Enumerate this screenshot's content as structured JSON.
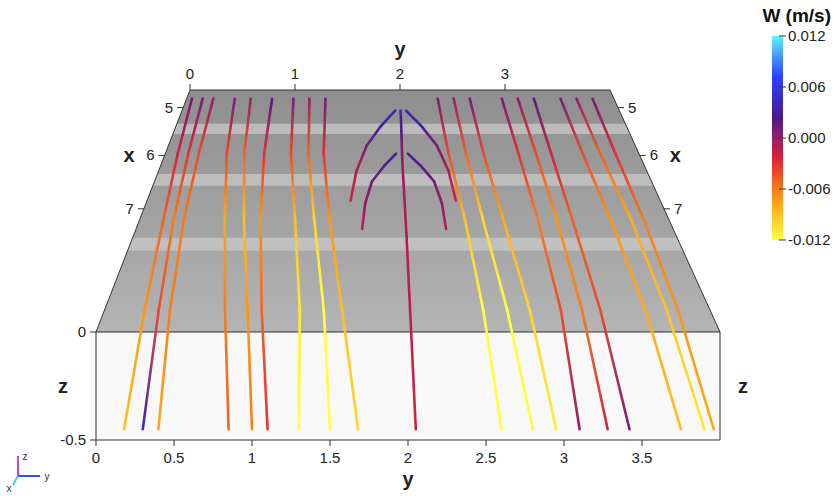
{
  "chart_data": {
    "type": "streamlines3d",
    "x_label": "x",
    "y_label": "y",
    "z_label": "z",
    "xlim": [
      4.6,
      9.0
    ],
    "xticks": [
      5,
      6,
      7
    ],
    "ylim": [
      0,
      4
    ],
    "yticks": [
      0,
      0.5,
      1,
      1.5,
      2,
      2.5,
      3,
      3.5
    ],
    "y_back_ticks": [
      0,
      1,
      2,
      3
    ],
    "zlim": [
      -0.5,
      0
    ],
    "zticks": [
      0,
      -0.5
    ],
    "colorbar": {
      "title": "W (m/s)",
      "range": [
        -0.012,
        0.012
      ],
      "ticks": [
        0.012,
        0.006,
        {
          "value": 0,
          "label": "0.000"
        },
        -0.006,
        -0.012
      ],
      "colors": [
        "#ffff40",
        "#ff9a10",
        "#e0203a",
        "#4a1a8c",
        "#2a40ff",
        "#60f0ff"
      ]
    },
    "axes_triad": {
      "labels": [
        "z",
        "y",
        "x"
      ]
    },
    "streamlines": [
      {
        "points": [
          [
            4.8,
            0.05,
            0
          ],
          [
            5.8,
            0.08,
            -0.05
          ],
          [
            6.8,
            0.12,
            -0.12
          ],
          [
            7.9,
            0.15,
            -0.25
          ],
          [
            9.0,
            0.18,
            -0.45
          ]
        ],
        "w": [
          0.001,
          -0.002,
          -0.005,
          -0.007,
          -0.009
        ]
      },
      {
        "points": [
          [
            4.8,
            0.15,
            0
          ],
          [
            5.8,
            0.17,
            -0.05
          ],
          [
            6.8,
            0.2,
            -0.12
          ],
          [
            7.9,
            0.25,
            -0.25
          ],
          [
            9.0,
            0.3,
            -0.45
          ]
        ],
        "w": [
          0.001,
          -0.003,
          -0.006,
          -0.004,
          0.004
        ]
      },
      {
        "points": [
          [
            4.8,
            0.25,
            0
          ],
          [
            5.8,
            0.26,
            -0.05
          ],
          [
            6.8,
            0.28,
            -0.12
          ],
          [
            7.9,
            0.33,
            -0.25
          ],
          [
            9.0,
            0.4,
            -0.45
          ]
        ],
        "w": [
          0,
          -0.004,
          -0.006,
          -0.006,
          -0.008
        ]
      },
      {
        "points": [
          [
            4.8,
            0.45,
            0
          ],
          [
            5.8,
            0.5,
            -0.05
          ],
          [
            6.8,
            0.6,
            -0.12
          ],
          [
            7.9,
            0.72,
            -0.25
          ],
          [
            9.0,
            0.85,
            -0.45
          ]
        ],
        "w": [
          0.001,
          -0.004,
          -0.008,
          -0.006,
          -0.005
        ]
      },
      {
        "points": [
          [
            4.8,
            0.6,
            0
          ],
          [
            5.8,
            0.65,
            -0.05
          ],
          [
            6.8,
            0.75,
            -0.12
          ],
          [
            7.9,
            0.88,
            -0.25
          ],
          [
            9.0,
            1.0,
            -0.45
          ]
        ],
        "w": [
          0,
          -0.005,
          -0.009,
          -0.007,
          -0.006
        ]
      },
      {
        "points": [
          [
            4.8,
            0.8,
            0
          ],
          [
            5.8,
            0.82,
            -0.05
          ],
          [
            6.8,
            0.88,
            -0.12
          ],
          [
            7.9,
            0.98,
            -0.25
          ],
          [
            9.0,
            1.1,
            -0.45
          ]
        ],
        "w": [
          0.002,
          -0.003,
          -0.007,
          -0.005,
          -0.003
        ]
      },
      {
        "points": [
          [
            4.8,
            1.0,
            0
          ],
          [
            5.8,
            1.05,
            -0.05
          ],
          [
            6.8,
            1.15,
            -0.12
          ],
          [
            7.9,
            1.25,
            -0.25
          ],
          [
            9.0,
            1.3,
            -0.45
          ]
        ],
        "w": [
          0.001,
          -0.004,
          -0.009,
          -0.011,
          -0.012
        ]
      },
      {
        "points": [
          [
            4.8,
            1.15,
            0
          ],
          [
            5.8,
            1.2,
            -0.05
          ],
          [
            6.8,
            1.3,
            -0.12
          ],
          [
            7.9,
            1.42,
            -0.25
          ],
          [
            9.0,
            1.5,
            -0.45
          ]
        ],
        "w": [
          0,
          -0.005,
          -0.01,
          -0.012,
          -0.012
        ]
      },
      {
        "points": [
          [
            4.8,
            1.3,
            0
          ],
          [
            5.8,
            1.33,
            -0.05
          ],
          [
            6.8,
            1.42,
            -0.12
          ],
          [
            7.9,
            1.55,
            -0.25
          ],
          [
            9.0,
            1.68,
            -0.45
          ]
        ],
        "w": [
          0.001,
          -0.003,
          -0.007,
          -0.009,
          -0.01
        ]
      },
      {
        "points": [
          [
            5.0,
            1.95,
            -0.02
          ],
          [
            5.4,
            1.82,
            0
          ],
          [
            5.8,
            1.7,
            0
          ],
          [
            6.2,
            1.62,
            -0.03
          ],
          [
            6.6,
            1.58,
            -0.08
          ]
        ],
        "w": [
          0.004,
          0.003,
          0.001,
          -0.001,
          -0.002
        ]
      },
      {
        "points": [
          [
            5.0,
            2.05,
            -0.02
          ],
          [
            5.4,
            2.18,
            0
          ],
          [
            5.8,
            2.3,
            0
          ],
          [
            6.2,
            2.38,
            -0.03
          ],
          [
            6.6,
            2.42,
            -0.08
          ]
        ],
        "w": [
          0.004,
          0.003,
          0.001,
          -0.001,
          -0.002
        ]
      },
      {
        "points": [
          [
            5.0,
            2.0,
            -0.02
          ],
          [
            5.5,
            2.0,
            0
          ],
          [
            6.0,
            2.0,
            -0.02
          ],
          [
            7.0,
            2.02,
            -0.15
          ],
          [
            9.0,
            2.05,
            -0.45
          ]
        ],
        "w": [
          0.004,
          0.002,
          0,
          -0.001,
          -0.002
        ]
      },
      {
        "points": [
          [
            5.9,
            1.95,
            -0.02
          ],
          [
            6.2,
            1.85,
            0
          ],
          [
            6.5,
            1.75,
            0
          ],
          [
            6.8,
            1.7,
            -0.03
          ],
          [
            7.1,
            1.68,
            -0.08
          ]
        ],
        "w": [
          0.003,
          0.002,
          0.001,
          0,
          -0.001
        ]
      },
      {
        "points": [
          [
            5.9,
            2.05,
            -0.02
          ],
          [
            6.2,
            2.15,
            0
          ],
          [
            6.5,
            2.25,
            0
          ],
          [
            6.8,
            2.3,
            -0.03
          ],
          [
            7.1,
            2.32,
            -0.08
          ]
        ],
        "w": [
          0.003,
          0.002,
          0.001,
          0,
          -0.001
        ]
      },
      {
        "points": [
          [
            4.8,
            2.35,
            0
          ],
          [
            5.8,
            2.4,
            -0.05
          ],
          [
            6.8,
            2.48,
            -0.12
          ],
          [
            7.9,
            2.55,
            -0.25
          ],
          [
            9.0,
            2.6,
            -0.45
          ]
        ],
        "w": [
          0.001,
          -0.004,
          -0.009,
          -0.012,
          -0.012
        ]
      },
      {
        "points": [
          [
            4.8,
            2.5,
            0
          ],
          [
            5.8,
            2.55,
            -0.05
          ],
          [
            6.8,
            2.62,
            -0.12
          ],
          [
            7.9,
            2.72,
            -0.25
          ],
          [
            9.0,
            2.8,
            -0.45
          ]
        ],
        "w": [
          0,
          -0.005,
          -0.01,
          -0.012,
          -0.012
        ]
      },
      {
        "points": [
          [
            4.8,
            2.65,
            0
          ],
          [
            5.8,
            2.7,
            -0.05
          ],
          [
            6.8,
            2.78,
            -0.12
          ],
          [
            7.9,
            2.88,
            -0.25
          ],
          [
            9.0,
            2.95,
            -0.45
          ]
        ],
        "w": [
          0.001,
          -0.004,
          -0.008,
          -0.01,
          -0.011
        ]
      },
      {
        "points": [
          [
            4.8,
            2.95,
            0
          ],
          [
            5.8,
            3.0,
            -0.05
          ],
          [
            6.8,
            3.05,
            -0.12
          ],
          [
            7.9,
            3.1,
            -0.25
          ],
          [
            9.0,
            3.1,
            -0.45
          ]
        ],
        "w": [
          0.001,
          -0.003,
          -0.006,
          -0.004,
          0
        ]
      },
      {
        "points": [
          [
            4.8,
            3.1,
            0
          ],
          [
            5.8,
            3.15,
            -0.05
          ],
          [
            6.8,
            3.2,
            -0.12
          ],
          [
            7.9,
            3.25,
            -0.25
          ],
          [
            9.0,
            3.28,
            -0.45
          ]
        ],
        "w": [
          0,
          -0.004,
          -0.007,
          -0.006,
          -0.002
        ]
      },
      {
        "points": [
          [
            4.8,
            3.25,
            0
          ],
          [
            5.8,
            3.28,
            -0.05
          ],
          [
            6.8,
            3.32,
            -0.12
          ],
          [
            7.9,
            3.38,
            -0.25
          ],
          [
            9.0,
            3.42,
            -0.45
          ]
        ],
        "w": [
          0.002,
          -0.002,
          -0.005,
          -0.004,
          0.001
        ]
      },
      {
        "points": [
          [
            4.8,
            3.5,
            0
          ],
          [
            5.8,
            3.55,
            -0.05
          ],
          [
            6.8,
            3.62,
            -0.12
          ],
          [
            7.9,
            3.7,
            -0.25
          ],
          [
            9.0,
            3.75,
            -0.45
          ]
        ],
        "w": [
          0.001,
          -0.004,
          -0.007,
          -0.008,
          -0.009
        ]
      },
      {
        "points": [
          [
            4.8,
            3.65,
            0
          ],
          [
            5.8,
            3.7,
            -0.05
          ],
          [
            6.8,
            3.78,
            -0.12
          ],
          [
            7.9,
            3.85,
            -0.25
          ],
          [
            9.0,
            3.9,
            -0.45
          ]
        ],
        "w": [
          0,
          -0.005,
          -0.008,
          -0.009,
          -0.011
        ]
      },
      {
        "points": [
          [
            4.8,
            3.8,
            0
          ],
          [
            5.8,
            3.83,
            -0.05
          ],
          [
            6.8,
            3.88,
            -0.12
          ],
          [
            7.9,
            3.93,
            -0.25
          ],
          [
            9.0,
            3.96,
            -0.45
          ]
        ],
        "w": [
          0.001,
          -0.003,
          -0.006,
          -0.007,
          -0.008
        ]
      }
    ]
  }
}
